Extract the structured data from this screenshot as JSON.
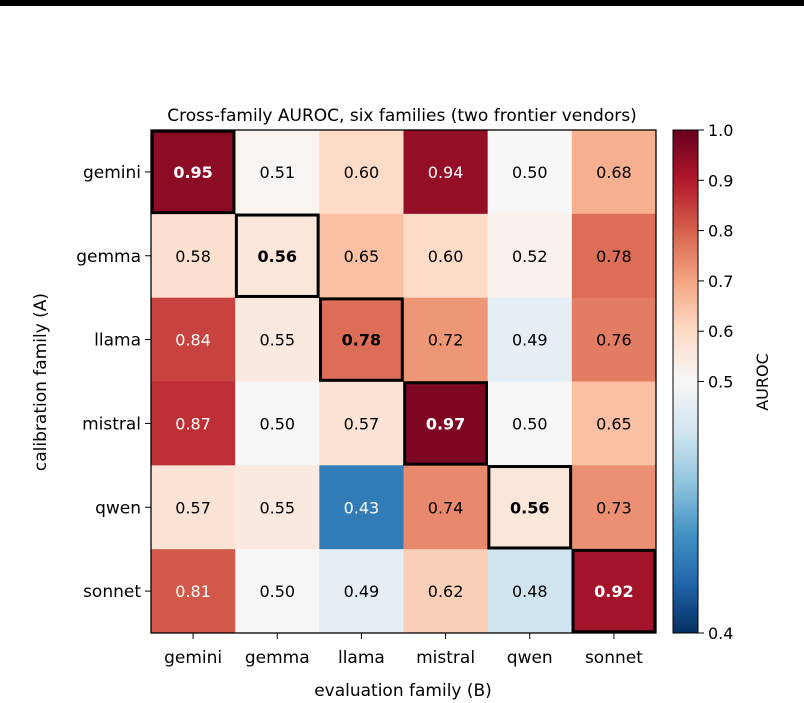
{
  "chart_data": {
    "type": "heatmap",
    "title": "Cross-family AUROC, six families (two frontier vendors)",
    "xlabel": "evaluation family (B)",
    "ylabel": "calibration family (A)",
    "rows": [
      "gemini",
      "gemma",
      "llama",
      "mistral",
      "qwen",
      "sonnet"
    ],
    "columns": [
      "gemini",
      "gemma",
      "llama",
      "mistral",
      "qwen",
      "sonnet"
    ],
    "values": [
      [
        0.95,
        0.51,
        0.6,
        0.94,
        0.5,
        0.68
      ],
      [
        0.58,
        0.56,
        0.65,
        0.6,
        0.52,
        0.78
      ],
      [
        0.84,
        0.55,
        0.78,
        0.72,
        0.49,
        0.76
      ],
      [
        0.87,
        0.5,
        0.57,
        0.97,
        0.5,
        0.65
      ],
      [
        0.57,
        0.55,
        0.43,
        0.74,
        0.56,
        0.73
      ],
      [
        0.81,
        0.5,
        0.49,
        0.62,
        0.48,
        0.92
      ]
    ],
    "value_labels": [
      [
        "0.95",
        "0.51",
        "0.60",
        "0.94",
        "0.50",
        "0.68"
      ],
      [
        "0.58",
        "0.56",
        "0.65",
        "0.60",
        "0.52",
        "0.78"
      ],
      [
        "0.84",
        "0.55",
        "0.78",
        "0.72",
        "0.49",
        "0.76"
      ],
      [
        "0.87",
        "0.50",
        "0.57",
        "0.97",
        "0.50",
        "0.65"
      ],
      [
        "0.57",
        "0.55",
        "0.43",
        "0.74",
        "0.56",
        "0.73"
      ],
      [
        "0.81",
        "0.50",
        "0.49",
        "0.62",
        "0.48",
        "0.92"
      ]
    ],
    "diagonal_highlighted": true,
    "colorbar": {
      "label": "AUROC",
      "colormap": "RdBu_r",
      "center": 0.5,
      "range": [
        0.4,
        1.0
      ],
      "ticks": [
        0.4,
        0.5,
        0.6,
        0.7,
        0.8,
        0.9,
        1.0
      ],
      "tick_labels": [
        "0.4",
        "0.5",
        "0.6",
        "0.7",
        "0.8",
        "0.9",
        "1.0"
      ]
    },
    "grid": false
  }
}
